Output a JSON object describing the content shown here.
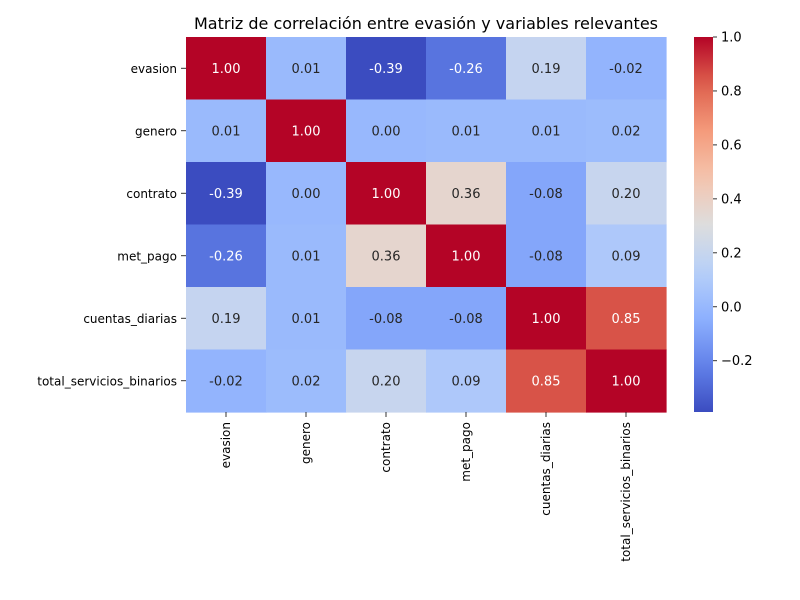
{
  "chart_data": {
    "type": "heatmap",
    "title": "Matriz de correlación entre evasión y variables relevantes",
    "rows": [
      "evasion",
      "genero",
      "contrato",
      "met_pago",
      "cuentas_diarias",
      "total_servicios_binarios"
    ],
    "columns": [
      "evasion",
      "genero",
      "contrato",
      "met_pago",
      "cuentas_diarias",
      "total_servicios_binarios"
    ],
    "values": [
      [
        1.0,
        0.01,
        -0.39,
        -0.26,
        0.19,
        -0.02
      ],
      [
        0.01,
        1.0,
        0.0,
        0.01,
        0.01,
        0.02
      ],
      [
        -0.39,
        0.0,
        1.0,
        0.36,
        -0.08,
        0.2
      ],
      [
        -0.26,
        0.01,
        0.36,
        1.0,
        -0.08,
        0.09
      ],
      [
        0.19,
        0.01,
        -0.08,
        -0.08,
        1.0,
        0.85
      ],
      [
        -0.02,
        0.02,
        0.2,
        0.09,
        0.85,
        1.0
      ]
    ],
    "value_format": "0.00",
    "colormap": "coolwarm",
    "color_range": [
      -0.39,
      1.0
    ],
    "colorbar": {
      "ticks": [
        -0.2,
        0.0,
        0.2,
        0.4,
        0.6,
        0.8,
        1.0
      ],
      "tick_labels": [
        "−0.2",
        "0.0",
        "0.2",
        "0.4",
        "0.6",
        "0.8",
        "1.0"
      ]
    },
    "grid": false
  }
}
